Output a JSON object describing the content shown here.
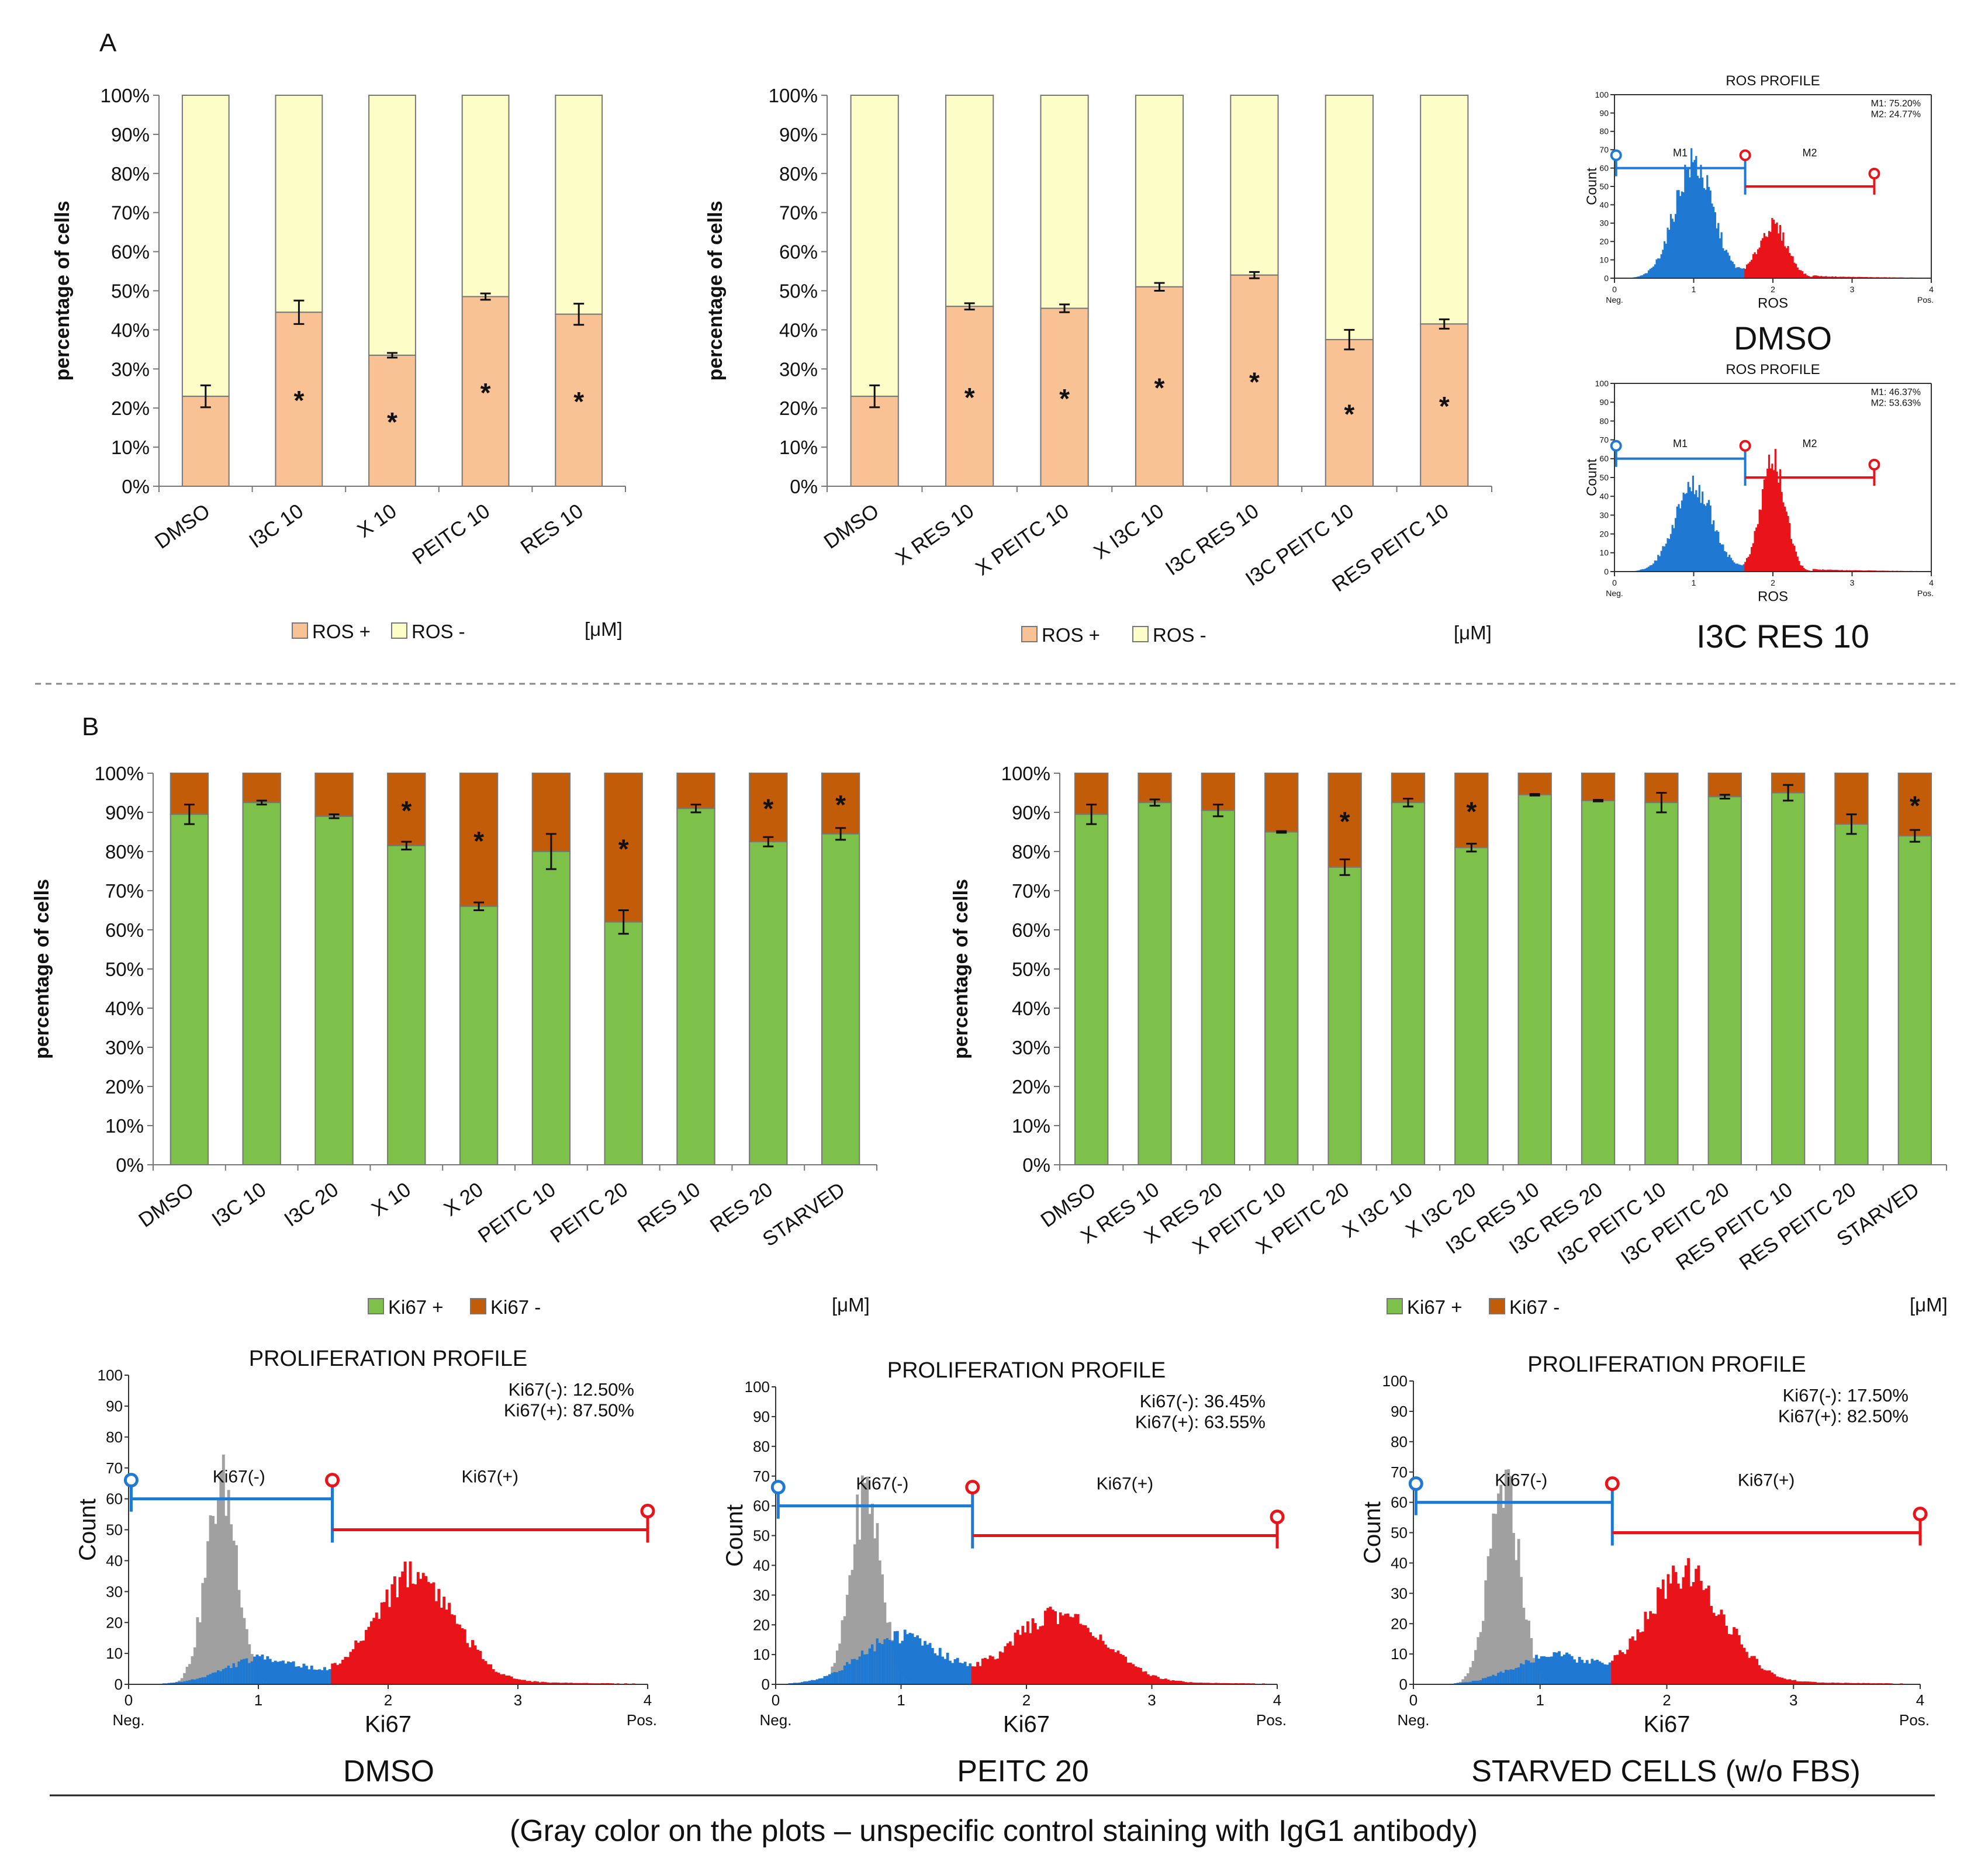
{
  "panels": {
    "a": "A",
    "b": "B"
  },
  "y_axis_label": "percentage of cells",
  "unit_label": "[μM]",
  "legend_ros": {
    "pos": "ROS +",
    "neg": "ROS -"
  },
  "legend_ki67": {
    "pos": "Ki67 +",
    "neg": "Ki67 -"
  },
  "colors": {
    "ros_pos": "#f9c295",
    "ros_neg": "#fdfdc8",
    "ki67_pos": "#7dc04a",
    "ki67_neg": "#c25c09",
    "hist_gray": "#a0a0a0",
    "hist_blue": "#1f78d1",
    "hist_red": "#e8141a"
  },
  "chart_data": [
    {
      "type": "bar",
      "stacked": true,
      "title": "",
      "ylabel": "percentage of cells",
      "ylim": [
        0,
        100
      ],
      "yticks": [
        "0%",
        "10%",
        "20%",
        "30%",
        "40%",
        "50%",
        "60%",
        "70%",
        "80%",
        "90%",
        "100%"
      ],
      "categories": [
        "DMSO",
        "I3C 10",
        "X 10",
        "PEITC 10",
        "RES 10"
      ],
      "series": [
        {
          "name": "ROS +",
          "values": [
            23,
            44.5,
            33.5,
            48.5,
            44
          ],
          "errors": [
            2.8,
            3,
            0.6,
            0.8,
            2.7
          ]
        },
        {
          "name": "ROS -",
          "values": [
            77,
            55.5,
            66.5,
            51.5,
            56
          ]
        }
      ],
      "significance": [
        "",
        "*",
        "*",
        "*",
        "*"
      ],
      "legend": "bottom"
    },
    {
      "type": "bar",
      "stacked": true,
      "title": "",
      "ylabel": "percentage of cells",
      "ylim": [
        0,
        100
      ],
      "yticks": [
        "0%",
        "10%",
        "20%",
        "30%",
        "40%",
        "50%",
        "60%",
        "70%",
        "80%",
        "90%",
        "100%"
      ],
      "categories": [
        "DMSO",
        "X RES 10",
        "X PEITC 10",
        "X I3C 10",
        "I3C RES 10",
        "I3C PEITC 10",
        "RES PEITC 10"
      ],
      "series": [
        {
          "name": "ROS +",
          "values": [
            23,
            46,
            45.5,
            51,
            54,
            37.5,
            41.5
          ],
          "errors": [
            2.8,
            0.8,
            1,
            1,
            0.8,
            2.5,
            1.2
          ]
        },
        {
          "name": "ROS -",
          "values": [
            77,
            54,
            54.5,
            49,
            46,
            62.5,
            58.5
          ]
        }
      ],
      "significance": [
        "",
        "*",
        "*",
        "*",
        "*",
        "*",
        "*"
      ],
      "legend": "bottom"
    },
    {
      "type": "bar",
      "stacked": true,
      "title": "",
      "ylabel": "percentage of cells",
      "ylim": [
        0,
        100
      ],
      "yticks": [
        "0%",
        "10%",
        "20%",
        "30%",
        "40%",
        "50%",
        "60%",
        "70%",
        "80%",
        "90%",
        "100%"
      ],
      "categories": [
        "DMSO",
        "I3C 10",
        "I3C 20",
        "X 10",
        "X 20",
        "PEITC 10",
        "PEITC 20",
        "RES 10",
        "RES 20",
        "STARVED"
      ],
      "series": [
        {
          "name": "Ki67 +",
          "values": [
            89.5,
            92.5,
            89,
            81.5,
            66,
            80,
            62,
            91,
            82.5,
            84.5
          ],
          "errors": [
            2.5,
            0.5,
            0.5,
            1,
            1,
            4.5,
            3,
            1,
            1.2,
            1.5
          ]
        },
        {
          "name": "Ki67 -",
          "values": [
            10.5,
            7.5,
            11,
            18.5,
            34,
            20,
            38,
            9,
            17.5,
            15.5
          ]
        }
      ],
      "significance": [
        "",
        "",
        "",
        "*",
        "*",
        "",
        "*",
        "",
        "*",
        "*"
      ],
      "legend": "bottom"
    },
    {
      "type": "bar",
      "stacked": true,
      "title": "",
      "ylabel": "percentage of cells",
      "ylim": [
        0,
        100
      ],
      "yticks": [
        "0%",
        "10%",
        "20%",
        "30%",
        "40%",
        "50%",
        "60%",
        "70%",
        "80%",
        "90%",
        "100%"
      ],
      "categories": [
        "DMSO",
        "X RES 10",
        "X RES 20",
        "X PEITC 10",
        "X PEITC 20",
        "X I3C 10",
        "X I3C 20",
        "I3C RES 10",
        "I3C RES 20",
        "I3C PEITC 10",
        "I3C PEITC 20",
        "RES PEITC 10",
        "RES PEITC 20",
        "STARVED"
      ],
      "series": [
        {
          "name": "Ki67 +",
          "values": [
            89.5,
            92.5,
            90.5,
            85,
            76,
            92.5,
            81,
            94.5,
            93,
            92.5,
            94,
            95,
            87,
            84
          ],
          "errors": [
            2.5,
            0.8,
            1.5,
            0.2,
            2,
            1,
            1,
            0.2,
            0.2,
            2.5,
            0.5,
            2,
            2.5,
            1.5
          ]
        },
        {
          "name": "Ki67 -",
          "values": [
            10.5,
            7.5,
            9.5,
            15,
            24,
            7.5,
            19,
            5.5,
            7,
            7.5,
            6,
            5,
            13,
            16
          ]
        }
      ],
      "significance": [
        "",
        "",
        "",
        "",
        "*",
        "",
        "*",
        "",
        "",
        "",
        "",
        "",
        "",
        "*"
      ],
      "legend": "bottom"
    },
    {
      "type": "histogram",
      "title": "ROS PROFILE",
      "xlabel": "ROS",
      "ylabel": "Count",
      "x_ticks": [
        "0",
        "1",
        "2",
        "3",
        "4"
      ],
      "x_ends": [
        "Neg.",
        "Pos."
      ],
      "y_ticks": [
        "0",
        "10",
        "20",
        "30",
        "40",
        "50",
        "60",
        "70",
        "80",
        "90",
        "100"
      ],
      "peaks": [
        {
          "center": 1.0,
          "height": 66,
          "width": 0.24
        },
        {
          "center": 2.0,
          "height": 30,
          "width": 0.18
        }
      ],
      "split": 1.65,
      "gate_m1_level": 60,
      "gate_m2_level": 50,
      "gates": [
        "M1",
        "M2"
      ],
      "stats": [
        "M1: 75.20%",
        "M2: 24.77%"
      ],
      "sample": "DMSO"
    },
    {
      "type": "histogram",
      "title": "ROS PROFILE",
      "xlabel": "ROS",
      "ylabel": "Count",
      "x_ticks": [
        "0",
        "1",
        "2",
        "3",
        "4"
      ],
      "x_ends": [
        "Neg.",
        "Pos."
      ],
      "y_ticks": [
        "0",
        "10",
        "20",
        "30",
        "40",
        "50",
        "60",
        "70",
        "80",
        "90",
        "100"
      ],
      "peaks": [
        {
          "center": 1.0,
          "height": 48,
          "width": 0.24
        },
        {
          "center": 2.0,
          "height": 63,
          "width": 0.15
        }
      ],
      "split": 1.65,
      "gate_m1_level": 60,
      "gate_m2_level": 50,
      "gates": [
        "M1",
        "M2"
      ],
      "stats": [
        "M1: 46.37%",
        "M2: 53.63%"
      ],
      "sample": "I3C RES 10"
    },
    {
      "type": "histogram",
      "title": "PROLIFERATION PROFILE",
      "xlabel": "Ki67",
      "ylabel": "Count",
      "x_ticks": [
        "0",
        "1",
        "2",
        "3",
        "4"
      ],
      "x_ends": [
        "Neg.",
        "Pos."
      ],
      "y_ticks": [
        "0",
        "10",
        "20",
        "30",
        "40",
        "50",
        "60",
        "70",
        "80",
        "90",
        "100"
      ],
      "peaks": [
        {
          "center": 0.72,
          "height": 68,
          "width": 0.12,
          "color": "gray"
        },
        {
          "center": 1.05,
          "height": 9,
          "width": 0.3
        },
        {
          "center": 2.2,
          "height": 38,
          "width": 0.3
        }
      ],
      "split": 1.57,
      "gate_m1_level": 60,
      "gate_m2_level": 50,
      "gates": [
        "Ki67(-)",
        "Ki67(+)"
      ],
      "stats": [
        "Ki67(-): 12.50%",
        "Ki67(+): 87.50%"
      ],
      "sample": "DMSO"
    },
    {
      "type": "histogram",
      "title": "PROLIFERATION PROFILE",
      "xlabel": "Ki67",
      "ylabel": "Count",
      "x_ticks": [
        "0",
        "1",
        "2",
        "3",
        "4"
      ],
      "x_ends": [
        "Neg.",
        "Pos."
      ],
      "y_ticks": [
        "0",
        "10",
        "20",
        "30",
        "40",
        "50",
        "60",
        "70",
        "80",
        "90",
        "100"
      ],
      "peaks": [
        {
          "center": 0.72,
          "height": 68,
          "width": 0.12,
          "color": "gray"
        },
        {
          "center": 1.0,
          "height": 17,
          "width": 0.32
        },
        {
          "center": 2.25,
          "height": 25,
          "width": 0.35
        }
      ],
      "split": 1.57,
      "gate_m1_level": 60,
      "gate_m2_level": 50,
      "gates": [
        "Ki67(-)",
        "Ki67(+)"
      ],
      "stats": [
        "Ki67(-): 36.45%",
        "Ki67(+): 63.55%"
      ],
      "sample": "PEITC 20"
    },
    {
      "type": "histogram",
      "title": "PROLIFERATION PROFILE",
      "xlabel": "Ki67",
      "ylabel": "Count",
      "x_ticks": [
        "0",
        "1",
        "2",
        "3",
        "4"
      ],
      "x_ends": [
        "Neg.",
        "Pos."
      ],
      "y_ticks": [
        "0",
        "10",
        "20",
        "30",
        "40",
        "50",
        "60",
        "70",
        "80",
        "90",
        "100"
      ],
      "peaks": [
        {
          "center": 0.72,
          "height": 68,
          "width": 0.12,
          "color": "gray"
        },
        {
          "center": 1.1,
          "height": 10,
          "width": 0.3
        },
        {
          "center": 2.15,
          "height": 38,
          "width": 0.3
        }
      ],
      "split": 1.57,
      "gate_m1_level": 60,
      "gate_m2_level": 50,
      "gates": [
        "Ki67(-)",
        "Ki67(+)"
      ],
      "stats": [
        "Ki67(-): 17.50%",
        "Ki67(+): 82.50%"
      ],
      "sample": "STARVED CELLS (w/o FBS)"
    }
  ],
  "footnote": "(Gray color on the plots – unspecific control staining with IgG1 antibody)"
}
